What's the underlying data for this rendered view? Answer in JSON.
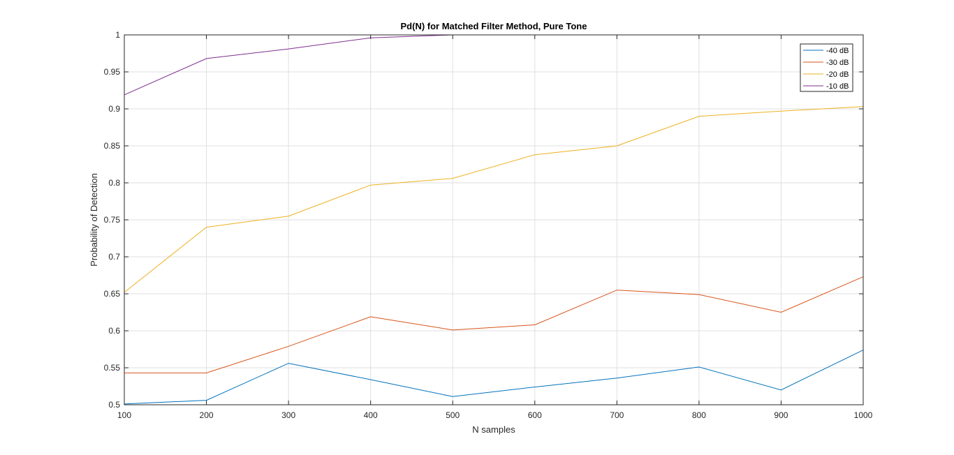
{
  "chart_data": {
    "type": "line",
    "title": "Pd(N) for Matched Filter Method, Pure Tone",
    "xlabel": "N samples",
    "ylabel": "Probability of Detection",
    "xlim": [
      100,
      1000
    ],
    "ylim": [
      0.5,
      1
    ],
    "xticks": [
      "100",
      "200",
      "300",
      "400",
      "500",
      "600",
      "700",
      "800",
      "900",
      "1000"
    ],
    "yticks": [
      "0.5",
      "0.55",
      "0.6",
      "0.65",
      "0.7",
      "0.75",
      "0.8",
      "0.85",
      "0.9",
      "0.95",
      "1"
    ],
    "grid": true,
    "legend_position": "top-right",
    "x": [
      100,
      200,
      300,
      400,
      500,
      600,
      700,
      800,
      900,
      1000
    ],
    "series": [
      {
        "name": "-40 dB",
        "color": "#0072BD",
        "values": [
          0.501,
          0.506,
          0.556,
          0.534,
          0.511,
          0.524,
          0.536,
          0.551,
          0.52,
          0.574
        ]
      },
      {
        "name": "-30 dB",
        "color": "#D95319",
        "values": [
          0.543,
          0.543,
          0.579,
          0.619,
          0.601,
          0.608,
          0.655,
          0.649,
          0.625,
          0.673
        ]
      },
      {
        "name": "-20 dB",
        "color": "#EDB120",
        "values": [
          0.652,
          0.74,
          0.755,
          0.797,
          0.806,
          0.838,
          0.85,
          0.89,
          0.897,
          0.903
        ]
      },
      {
        "name": "-10 dB",
        "color": "#7E2F8E",
        "values": [
          0.919,
          0.968,
          0.981,
          0.996,
          1.0,
          1.0,
          1.0,
          1.0,
          1.0,
          1.0
        ]
      }
    ]
  }
}
